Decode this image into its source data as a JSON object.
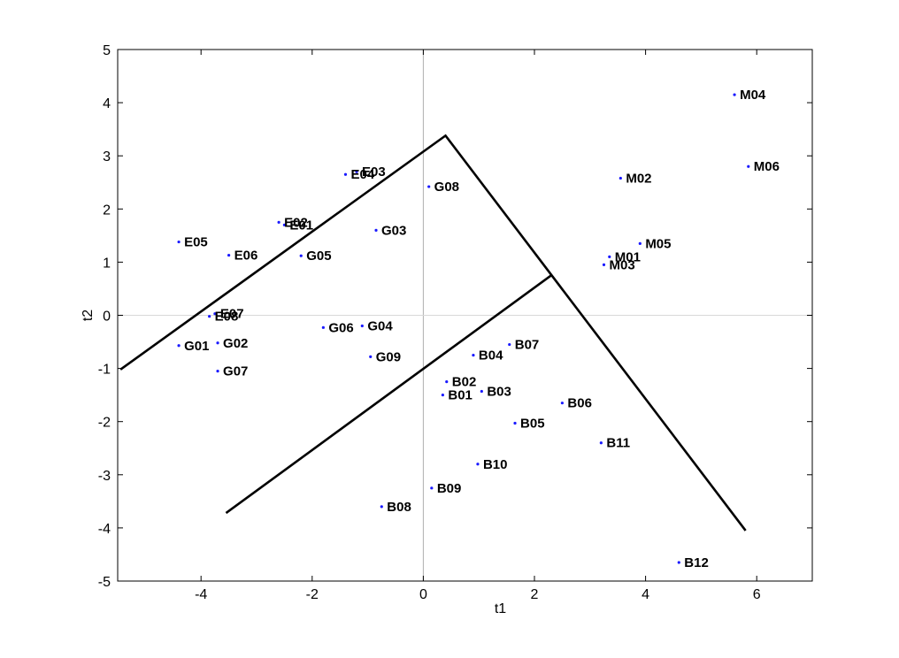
{
  "chart_data": {
    "type": "scatter",
    "title": "",
    "xlabel": "t1",
    "ylabel": "t2",
    "xlim": [
      -5.5,
      7
    ],
    "ylim": [
      -5,
      5
    ],
    "xticks": [
      -4,
      -2,
      0,
      2,
      4,
      6
    ],
    "yticks": [
      -5,
      -4,
      -3,
      -2,
      -1,
      0,
      1,
      2,
      3,
      4,
      5
    ],
    "grid": false,
    "legend": "none",
    "point_color": "#1a1aff",
    "reference_lines": {
      "x": 0,
      "y": 0,
      "color": "#b0b0b0"
    },
    "points": [
      {
        "label": "E01",
        "x": -2.5,
        "y": 1.7
      },
      {
        "label": "E02",
        "x": -2.6,
        "y": 1.75
      },
      {
        "label": "E03",
        "x": -1.2,
        "y": 2.7
      },
      {
        "label": "E04",
        "x": -1.4,
        "y": 2.65
      },
      {
        "label": "E05",
        "x": -4.4,
        "y": 1.38
      },
      {
        "label": "E06",
        "x": -3.5,
        "y": 1.13
      },
      {
        "label": "E07",
        "x": -3.75,
        "y": 0.03
      },
      {
        "label": "E08",
        "x": -3.85,
        "y": -0.02
      },
      {
        "label": "G01",
        "x": -4.4,
        "y": -0.57
      },
      {
        "label": "G02",
        "x": -3.7,
        "y": -0.52
      },
      {
        "label": "G03",
        "x": -0.85,
        "y": 1.6
      },
      {
        "label": "G04",
        "x": -1.1,
        "y": -0.2
      },
      {
        "label": "G05",
        "x": -2.2,
        "y": 1.12
      },
      {
        "label": "G06",
        "x": -1.8,
        "y": -0.23
      },
      {
        "label": "G07",
        "x": -3.7,
        "y": -1.05
      },
      {
        "label": "G08",
        "x": 0.1,
        "y": 2.42
      },
      {
        "label": "G09",
        "x": -0.95,
        "y": -0.78
      },
      {
        "label": "M01",
        "x": 3.35,
        "y": 1.1
      },
      {
        "label": "M02",
        "x": 3.55,
        "y": 2.58
      },
      {
        "label": "M03",
        "x": 3.25,
        "y": 0.95
      },
      {
        "label": "M04",
        "x": 5.6,
        "y": 4.15
      },
      {
        "label": "M05",
        "x": 3.9,
        "y": 1.35
      },
      {
        "label": "M06",
        "x": 5.85,
        "y": 2.8
      },
      {
        "label": "B01",
        "x": 0.35,
        "y": -1.5
      },
      {
        "label": "B02",
        "x": 0.42,
        "y": -1.25
      },
      {
        "label": "B03",
        "x": 1.05,
        "y": -1.43
      },
      {
        "label": "B04",
        "x": 0.9,
        "y": -0.75
      },
      {
        "label": "B05",
        "x": 1.65,
        "y": -2.03
      },
      {
        "label": "B06",
        "x": 2.5,
        "y": -1.65
      },
      {
        "label": "B07",
        "x": 1.55,
        "y": -0.55
      },
      {
        "label": "B08",
        "x": -0.75,
        "y": -3.6
      },
      {
        "label": "B09",
        "x": 0.15,
        "y": -3.25
      },
      {
        "label": "B10",
        "x": 0.98,
        "y": -2.8
      },
      {
        "label": "B11",
        "x": 3.2,
        "y": -2.4
      },
      {
        "label": "B12",
        "x": 4.6,
        "y": -4.65
      }
    ],
    "lines": [
      {
        "x": [
          -5.45,
          0.4,
          5.8
        ],
        "y": [
          -1.02,
          3.38,
          -4.05
        ]
      },
      {
        "x": [
          -3.55,
          2.3
        ],
        "y": [
          -3.72,
          0.75
        ]
      }
    ]
  }
}
